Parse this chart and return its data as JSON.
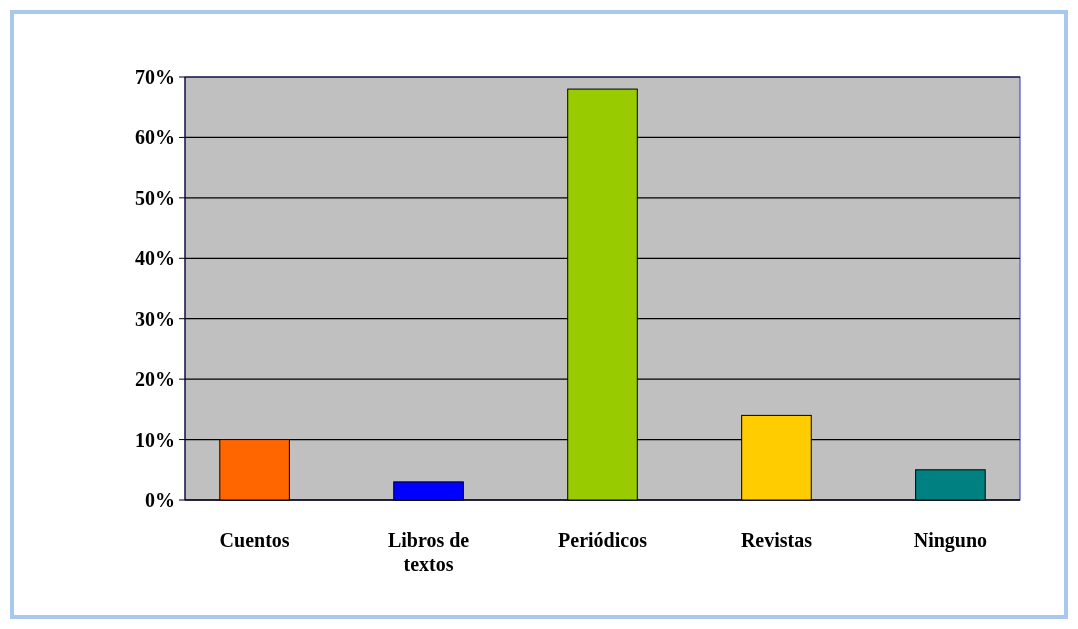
{
  "chart_data": {
    "type": "bar",
    "categories": [
      "Cuentos",
      "Libros de textos",
      "Periódicos",
      "Revistas",
      "Ninguno"
    ],
    "values": [
      10,
      3,
      68,
      14,
      5
    ],
    "colors": [
      "#ff6600",
      "#0000ff",
      "#99cc00",
      "#ffcc00",
      "#008080"
    ],
    "ylim": [
      0,
      70
    ],
    "yticks": [
      {
        "value": 0,
        "label": "0%"
      },
      {
        "value": 10,
        "label": "10%"
      },
      {
        "value": 20,
        "label": "20%"
      },
      {
        "value": 30,
        "label": "30%"
      },
      {
        "value": 40,
        "label": "40%"
      },
      {
        "value": 50,
        "label": "50%"
      },
      {
        "value": 60,
        "label": "60%"
      },
      {
        "value": 70,
        "label": "70%"
      }
    ],
    "grid": "y"
  }
}
